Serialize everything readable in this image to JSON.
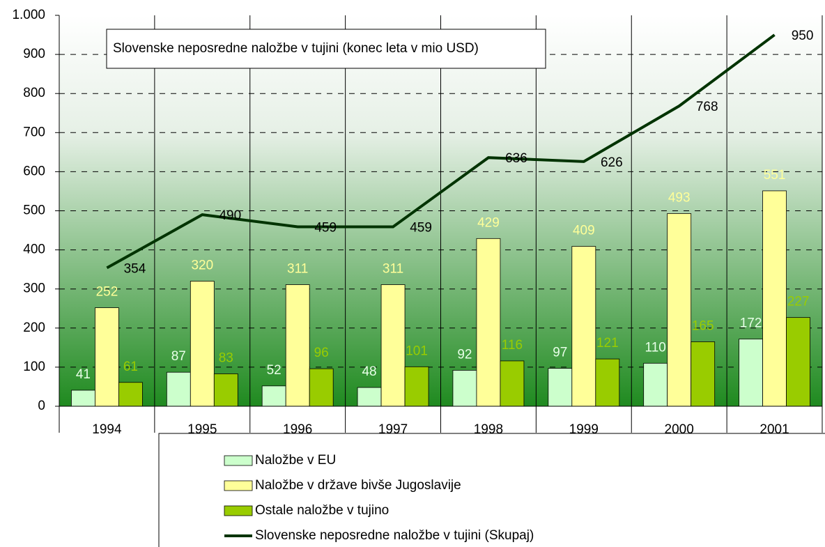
{
  "chart_data": {
    "type": "bar",
    "title": "Slovenske neposredne naložbe v tujini (konec leta v mio USD)",
    "categories": [
      "1994",
      "1995",
      "1996",
      "1997",
      "1998",
      "1999",
      "2000",
      "2001"
    ],
    "series": [
      {
        "name": "Naložbe v EU",
        "color": "#ccffcc",
        "label_color": "#e8ffe8",
        "values": [
          41,
          87,
          52,
          48,
          92,
          97,
          110,
          172
        ]
      },
      {
        "name": "Naložbe v države bivše Jugoslavije",
        "color": "#ffff99",
        "label_color": "#ffff99",
        "values": [
          252,
          320,
          311,
          311,
          429,
          409,
          493,
          551
        ]
      },
      {
        "name": "Ostale naložbe v tujino",
        "color": "#99cc00",
        "label_color": "#99cc00",
        "values": [
          61,
          83,
          96,
          101,
          116,
          121,
          165,
          227
        ]
      },
      {
        "name": "Slovenske neposredne naložbe v tujini (Skupaj)",
        "type": "line",
        "color": "#003300",
        "label_color": "#000000",
        "values": [
          354,
          490,
          459,
          459,
          636,
          626,
          768,
          950
        ]
      }
    ],
    "ylim": [
      0,
      1000
    ],
    "yticks": [
      0,
      100,
      200,
      300,
      400,
      500,
      600,
      700,
      800,
      900,
      {
        "value": 1000,
        "label": "1.000"
      }
    ],
    "grid": true
  }
}
